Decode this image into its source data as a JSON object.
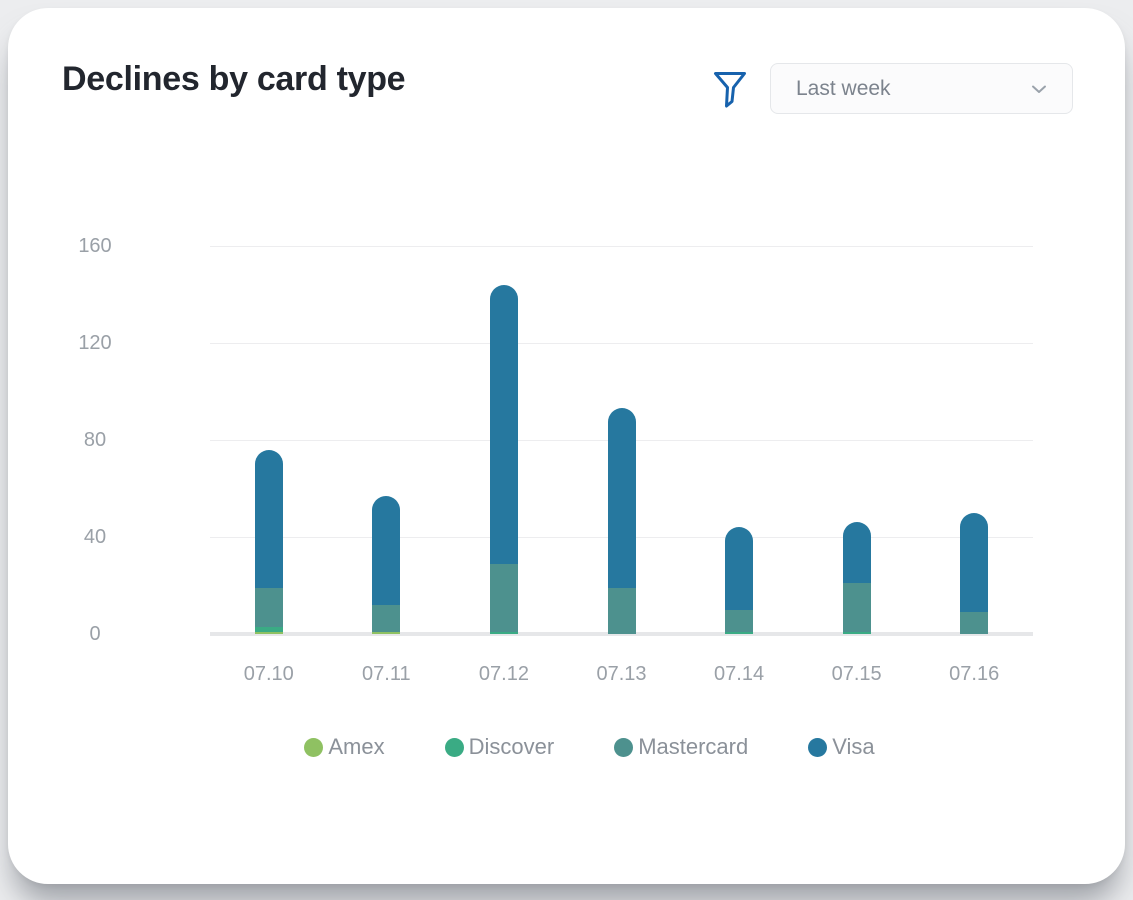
{
  "header": {
    "title": "Declines by card type",
    "filter_icon": "funnel-icon",
    "range_selector": {
      "value": "Last week",
      "chevron_icon": "chevron-down-icon"
    }
  },
  "colors": {
    "amex": "#8fc162",
    "discover": "#3aab84",
    "mastercard": "#4d918e",
    "visa": "#26789f",
    "accent_blue": "#1762ad",
    "grid": "#ededef",
    "baseline": "#e6e7e9",
    "axis_text": "#9aa0a7",
    "title_text": "#22262e"
  },
  "chart_data": {
    "type": "bar",
    "stacked": true,
    "title": "Declines by card type",
    "categories": [
      "07.10",
      "07.11",
      "07.12",
      "07.13",
      "07.14",
      "07.15",
      "07.16"
    ],
    "series": [
      {
        "name": "Amex",
        "color": "#8fc162",
        "values": [
          1,
          1,
          0,
          0,
          0,
          0,
          0
        ]
      },
      {
        "name": "Discover",
        "color": "#3aab84",
        "values": [
          2,
          0,
          1,
          0,
          1,
          1,
          0
        ]
      },
      {
        "name": "Mastercard",
        "color": "#4d918e",
        "values": [
          16,
          11,
          28,
          19,
          9,
          20,
          9
        ]
      },
      {
        "name": "Visa",
        "color": "#26789f",
        "values": [
          57,
          45,
          115,
          74,
          34,
          25,
          41
        ]
      }
    ],
    "totals": [
      76,
      57,
      144,
      93,
      44,
      46,
      50
    ],
    "xlabel": "",
    "ylabel": "",
    "ylim": [
      0,
      160
    ],
    "yticks": [
      0,
      40,
      80,
      120,
      160
    ],
    "grid": true,
    "legend_position": "bottom"
  }
}
